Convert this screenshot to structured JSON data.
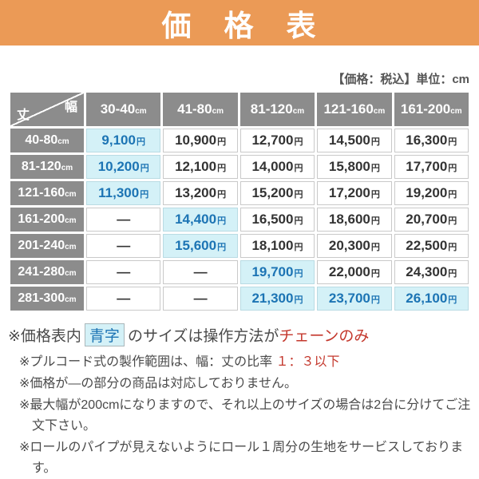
{
  "title": "価　格　表",
  "unit_note": "【価格：税込】単位：cm",
  "colors": {
    "accent_orange": "#EB9A56",
    "header_gray": "#8C8C8C",
    "highlight_cyan": "#D4F1F7",
    "highlight_blue": "#1C74B4",
    "warning_red": "#C4382D"
  },
  "table": {
    "corner": {
      "top_right": "幅",
      "bottom_left": "丈"
    },
    "col_headers": [
      {
        "range": "30-40",
        "unit": "cm"
      },
      {
        "range": "41-80",
        "unit": "cm"
      },
      {
        "range": "81-120",
        "unit": "cm"
      },
      {
        "range": "121-160",
        "unit": "cm"
      },
      {
        "range": "161-200",
        "unit": "cm"
      }
    ],
    "rows": [
      {
        "label": {
          "range": "40-80",
          "unit": "cm"
        },
        "cells": [
          {
            "value": "9,100",
            "unit": "円",
            "highlight": true
          },
          {
            "value": "10,900",
            "unit": "円",
            "highlight": false
          },
          {
            "value": "12,700",
            "unit": "円",
            "highlight": false
          },
          {
            "value": "14,500",
            "unit": "円",
            "highlight": false
          },
          {
            "value": "16,300",
            "unit": "円",
            "highlight": false
          }
        ]
      },
      {
        "label": {
          "range": "81-120",
          "unit": "cm"
        },
        "cells": [
          {
            "value": "10,200",
            "unit": "円",
            "highlight": true
          },
          {
            "value": "12,100",
            "unit": "円",
            "highlight": false
          },
          {
            "value": "14,000",
            "unit": "円",
            "highlight": false
          },
          {
            "value": "15,800",
            "unit": "円",
            "highlight": false
          },
          {
            "value": "17,700",
            "unit": "円",
            "highlight": false
          }
        ]
      },
      {
        "label": {
          "range": "121-160",
          "unit": "cm"
        },
        "cells": [
          {
            "value": "11,300",
            "unit": "円",
            "highlight": true
          },
          {
            "value": "13,200",
            "unit": "円",
            "highlight": false
          },
          {
            "value": "15,200",
            "unit": "円",
            "highlight": false
          },
          {
            "value": "17,200",
            "unit": "円",
            "highlight": false
          },
          {
            "value": "19,200",
            "unit": "円",
            "highlight": false
          }
        ]
      },
      {
        "label": {
          "range": "161-200",
          "unit": "cm"
        },
        "cells": [
          {
            "value": "—",
            "unit": "",
            "highlight": false
          },
          {
            "value": "14,400",
            "unit": "円",
            "highlight": true
          },
          {
            "value": "16,500",
            "unit": "円",
            "highlight": false
          },
          {
            "value": "18,600",
            "unit": "円",
            "highlight": false
          },
          {
            "value": "20,700",
            "unit": "円",
            "highlight": false
          }
        ]
      },
      {
        "label": {
          "range": "201-240",
          "unit": "cm"
        },
        "cells": [
          {
            "value": "—",
            "unit": "",
            "highlight": false
          },
          {
            "value": "15,600",
            "unit": "円",
            "highlight": true
          },
          {
            "value": "18,100",
            "unit": "円",
            "highlight": false
          },
          {
            "value": "20,300",
            "unit": "円",
            "highlight": false
          },
          {
            "value": "22,500",
            "unit": "円",
            "highlight": false
          }
        ]
      },
      {
        "label": {
          "range": "241-280",
          "unit": "cm"
        },
        "cells": [
          {
            "value": "—",
            "unit": "",
            "highlight": false
          },
          {
            "value": "—",
            "unit": "",
            "highlight": false
          },
          {
            "value": "19,700",
            "unit": "円",
            "highlight": true
          },
          {
            "value": "22,000",
            "unit": "円",
            "highlight": false
          },
          {
            "value": "24,300",
            "unit": "円",
            "highlight": false
          }
        ]
      },
      {
        "label": {
          "range": "281-300",
          "unit": "cm"
        },
        "cells": [
          {
            "value": "—",
            "unit": "",
            "highlight": false
          },
          {
            "value": "—",
            "unit": "",
            "highlight": false
          },
          {
            "value": "21,300",
            "unit": "円",
            "highlight": true
          },
          {
            "value": "23,700",
            "unit": "円",
            "highlight": true
          },
          {
            "value": "26,100",
            "unit": "円",
            "highlight": true
          }
        ]
      }
    ]
  },
  "notes": {
    "main": {
      "prefix": "※価格表内",
      "badge": "青字",
      "middle": "のサイズは操作方法が",
      "highlight": "チェーンのみ"
    },
    "items": [
      {
        "pre": "※プルコード式の製作範囲は、幅：丈の比率 ",
        "red": "１：３以下",
        "post": ""
      },
      {
        "pre": "※価格が—の部分の商品は対応しておりません。",
        "red": "",
        "post": ""
      },
      {
        "pre": "※最大幅が200cmになりますので、それ以上のサイズの場合は2台に分けてご注文下さい。",
        "red": "",
        "post": ""
      },
      {
        "pre": "※ロールのパイプが見えないようにロール１周分の生地をサービスしております。",
        "red": "",
        "post": ""
      }
    ]
  }
}
